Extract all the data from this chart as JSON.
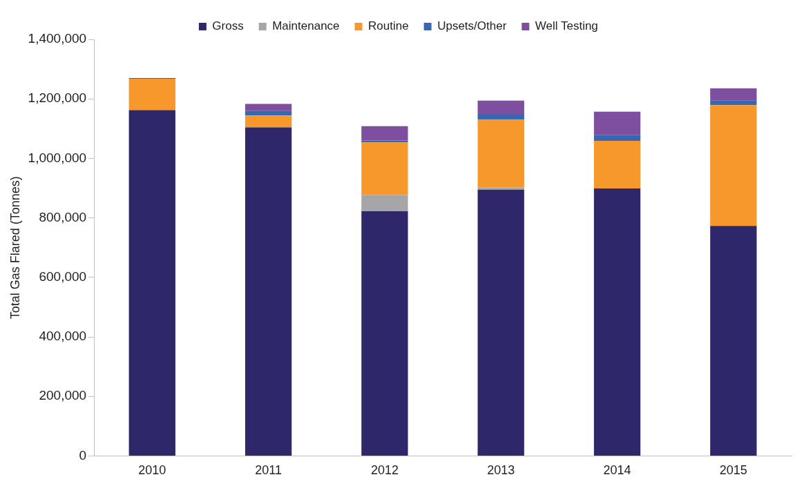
{
  "chart_data": {
    "type": "bar",
    "stacked": true,
    "ylabel": "Total Gas Flared (Tonnes)",
    "categories": [
      "2010",
      "2011",
      "2012",
      "2013",
      "2014",
      "2015"
    ],
    "series": [
      {
        "name": "Gross",
        "color": "#2e286b",
        "values": [
          1162000,
          1104000,
          822000,
          895000,
          899000,
          773000
        ]
      },
      {
        "name": "Maintenance",
        "color": "#a6a6a8",
        "values": [
          0,
          null,
          55000,
          7000,
          0,
          0
        ]
      },
      {
        "name": "Routine",
        "color": "#f6982c",
        "values": [
          106000,
          40000,
          177000,
          228000,
          160000,
          406000
        ]
      },
      {
        "name": "Upsets/Other",
        "color": "#3767b1",
        "values": [
          2000,
          15000,
          6000,
          17000,
          19000,
          16000
        ]
      },
      {
        "name": "Well Testing",
        "color": "#7e4f9e",
        "values": [
          0,
          24000,
          48000,
          47000,
          79000,
          40000
        ]
      }
    ],
    "ylim": [
      0,
      1400000
    ],
    "yticks": [
      0,
      {
        "value": 200000,
        "label": "200,000"
      },
      {
        "value": 400000,
        "label": "400,000"
      },
      {
        "value": 600000,
        "label": "600,000"
      },
      {
        "value": 800000,
        "label": "800,000"
      },
      {
        "value": 1000000,
        "label": "1,000,000"
      },
      {
        "value": 1200000,
        "label": "1,200,000"
      },
      {
        "value": 1400000,
        "label": "1,400,000"
      }
    ],
    "grid": false,
    "legend": "top"
  }
}
